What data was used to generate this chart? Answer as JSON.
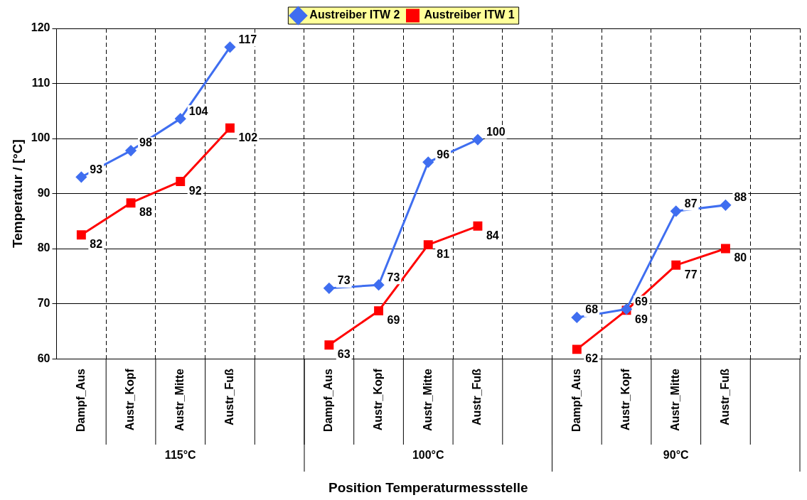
{
  "chart_data": {
    "type": "line",
    "xlabel": "Position Temperaturmessstelle",
    "ylabel": "Temperatur / [°C]",
    "categories": [
      "Dampf_Aus",
      "Austr_Kopf",
      "Austr_Mitte",
      "Austr_Fuß",
      null,
      "Dampf_Aus",
      "Austr_Kopf",
      "Austr_Mitte",
      "Austr_Fuß",
      null,
      "Dampf_Aus",
      "Austr_Kopf",
      "Austr_Mitte",
      "Austr_Fuß",
      null
    ],
    "series": [
      {
        "name": "Austreiber ITW 2",
        "color": "#3f6ef0",
        "values": [
          93,
          97.8,
          103.6,
          116.6,
          null,
          72.8,
          73.4,
          95.7,
          99.8,
          null,
          67.5,
          69,
          86.8,
          87.9,
          null
        ],
        "value_labels": [
          "93",
          "98",
          "104",
          "117",
          null,
          "73",
          "73",
          "96",
          "100",
          null,
          "68",
          "69",
          "87",
          "88",
          null
        ],
        "marker": "diamond"
      },
      {
        "name": "Austreiber ITW 1",
        "color": "#ff0000",
        "values": [
          82.5,
          88.3,
          92.2,
          101.9,
          null,
          62.5,
          68.7,
          80.7,
          84.1,
          null,
          61.7,
          68.8,
          77,
          80,
          null
        ],
        "value_labels": [
          "82",
          "88",
          "92",
          "102",
          null,
          "63",
          "69",
          "81",
          "84",
          null,
          "62",
          "69",
          "77",
          "80",
          null
        ],
        "marker": "square"
      }
    ],
    "annotations": [
      "115°C",
      "100°C",
      "90°C"
    ],
    "ylim": [
      60,
      120
    ],
    "yticks": [
      60,
      70,
      80,
      90,
      100,
      110,
      120
    ],
    "grid": true,
    "legend": "top",
    "line_style": "solid"
  }
}
